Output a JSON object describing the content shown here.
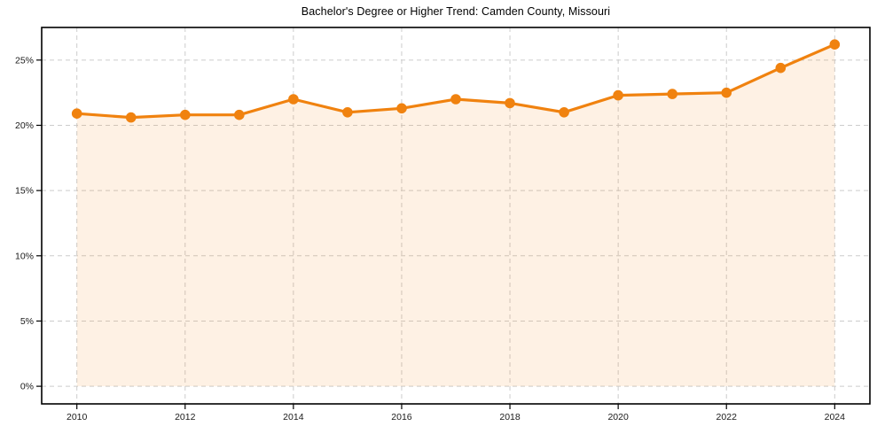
{
  "page": {
    "background_color": "#ffffff"
  },
  "chart_data": {
    "type": "line",
    "title": "Bachelor's Degree or Higher Trend: Camden County, Missouri",
    "xlabel": "",
    "ylabel": "",
    "x": [
      2010,
      2011,
      2012,
      2013,
      2014,
      2015,
      2016,
      2017,
      2018,
      2019,
      2020,
      2021,
      2022,
      2023,
      2024
    ],
    "series": [
      {
        "name": "Bachelor's Degree or Higher %",
        "values": [
          20.9,
          20.6,
          20.8,
          20.8,
          22.0,
          21.0,
          21.3,
          22.0,
          21.7,
          21.0,
          22.3,
          22.4,
          22.5,
          24.4,
          26.2
        ]
      }
    ],
    "x_ticks": [
      2010,
      2012,
      2014,
      2016,
      2018,
      2020,
      2022,
      2024
    ],
    "y_ticks": [
      0,
      5,
      10,
      15,
      20,
      25
    ],
    "y_tick_suffix": "%",
    "xlim": [
      2009.35,
      2024.65
    ],
    "ylim": [
      -1.35,
      27.5
    ],
    "grid": true,
    "grid_style": "dashed",
    "legend_position": "none",
    "area_fill_to_zero": true,
    "colors": {
      "line": "#f0820f",
      "marker": "#f0820f",
      "area_fill": "rgba(244,140,30,0.12)",
      "grid": "#cccccc",
      "spine": "#000000",
      "tick_label": "#1a1a1a",
      "title": "#000000"
    },
    "marker": "circle",
    "marker_radius": 5.8,
    "line_width": 3.2
  }
}
